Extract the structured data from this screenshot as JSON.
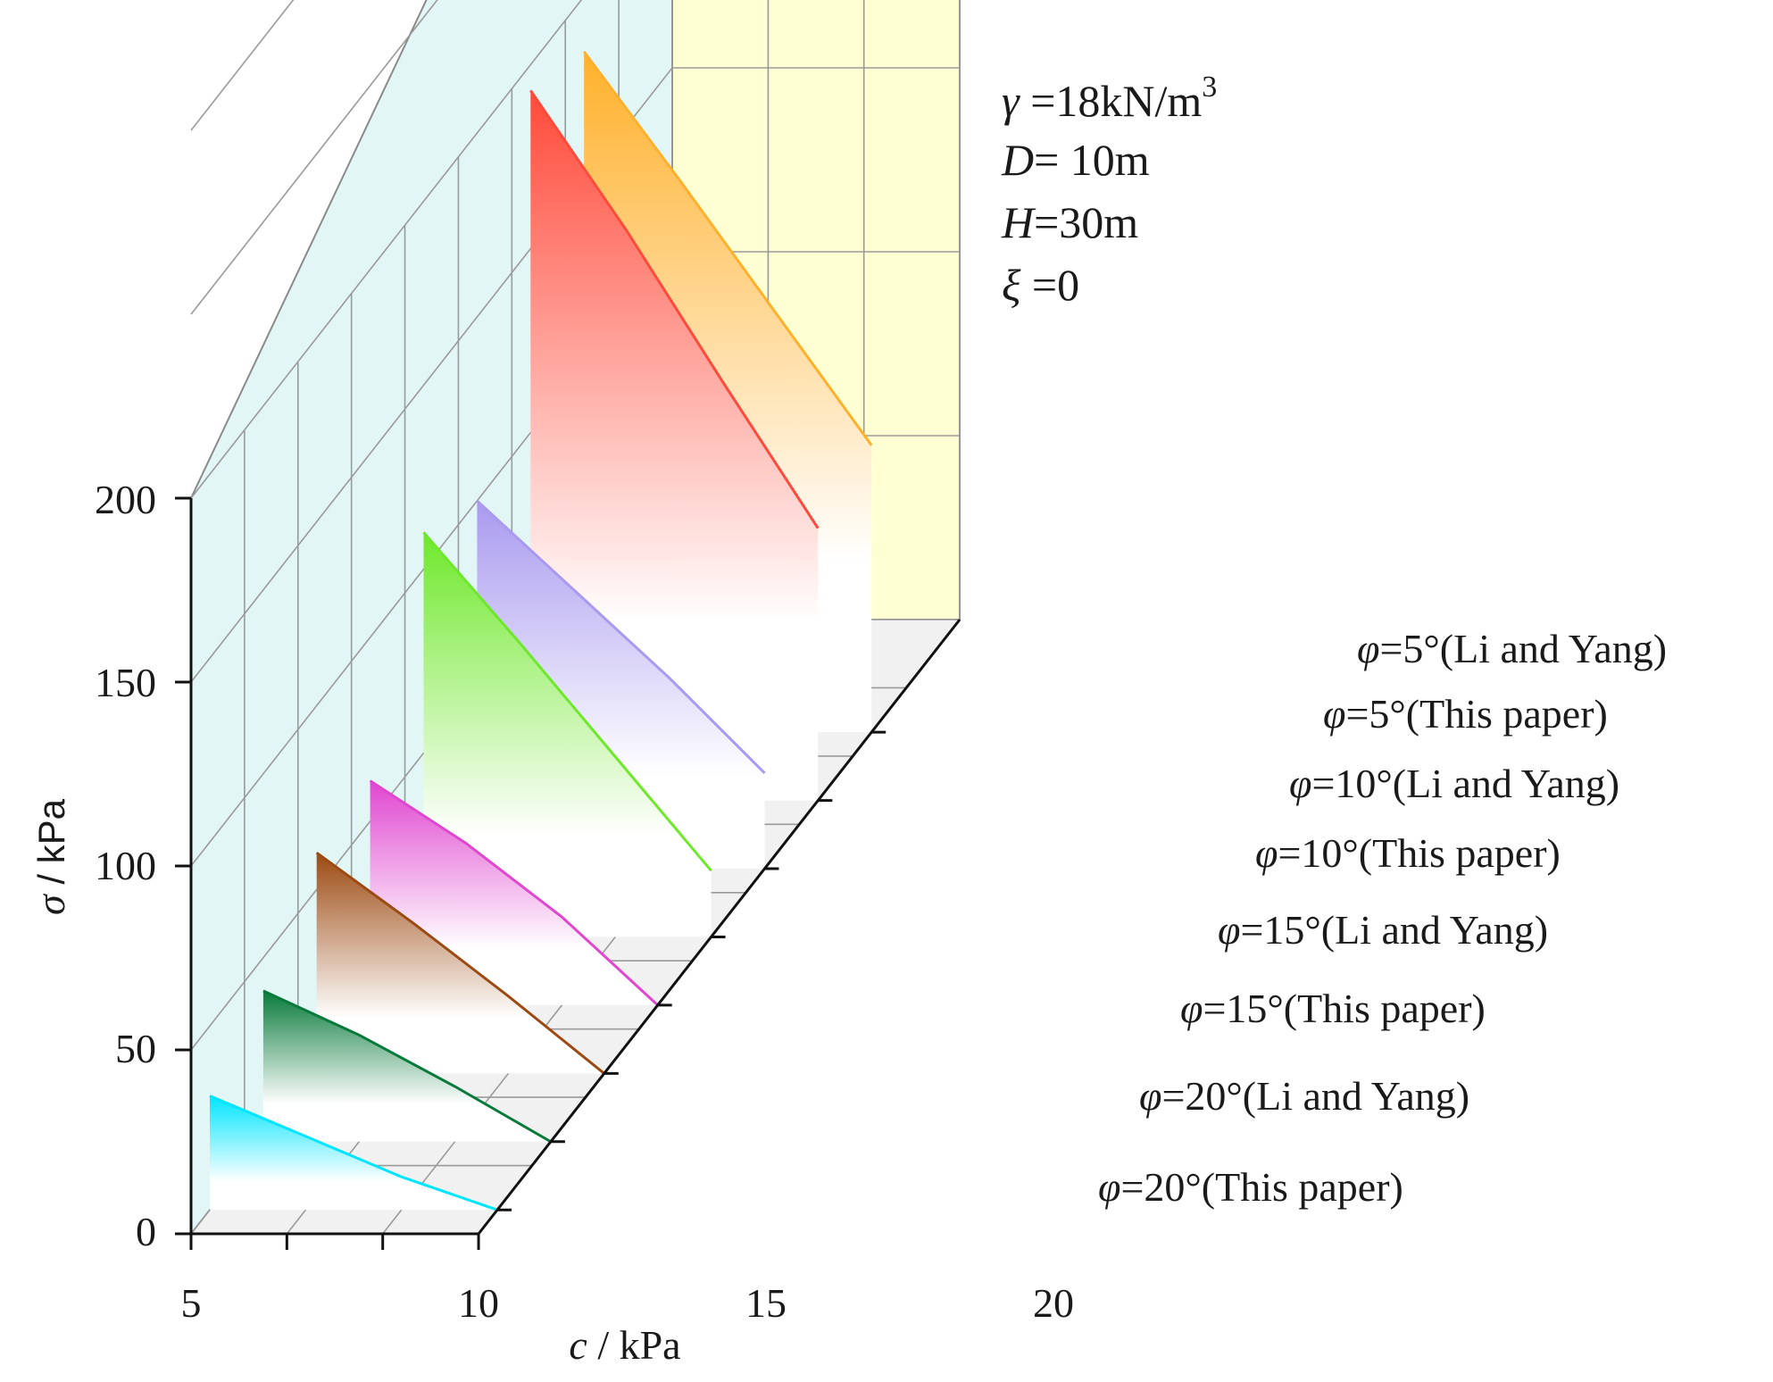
{
  "chart_data": {
    "type": "3d-area-waterfall",
    "xlabel": {
      "var": "c",
      "unit": " / kPa"
    },
    "ylabel": {
      "var": "σ",
      "unit": " / kPa"
    },
    "x_ticks": [
      "5",
      "10",
      "15",
      "20"
    ],
    "y_ticks": [
      "0",
      "50",
      "100",
      "150",
      "200"
    ],
    "xlim": [
      5,
      20
    ],
    "ylim": [
      0,
      200
    ],
    "annotations": [
      {
        "var": "γ",
        "text": " =18kN/m",
        "sup": "3"
      },
      {
        "var": "D",
        "text": "= 10m",
        "sup": ""
      },
      {
        "var": "H",
        "text": "=30m",
        "sup": ""
      },
      {
        "var": "ξ",
        "text": " =0",
        "sup": ""
      }
    ],
    "series": [
      {
        "name": "φ=20°(This paper)",
        "phi": "φ",
        "rest": "=20°(This paper)",
        "color": "#00e5ff",
        "x": [
          5,
          10,
          15,
          20
        ],
        "values": [
          31,
          20,
          9,
          0
        ]
      },
      {
        "name": "φ=20°(Li and Yang)",
        "phi": "φ",
        "rest": "=20°(Li and Yang)",
        "color": "#087a3a",
        "x": [
          5,
          10,
          15,
          20
        ],
        "values": [
          41,
          29,
          15,
          0
        ]
      },
      {
        "name": "φ=15°(This paper)",
        "phi": "φ",
        "rest": "=15°(This paper)",
        "color": "#9c4a12",
        "x": [
          5,
          10,
          15,
          20
        ],
        "values": [
          60,
          41,
          21,
          0
        ]
      },
      {
        "name": "φ=15°(Li and Yang)",
        "phi": "φ",
        "rest": "=15°(Li and Yang)",
        "color": "#e046d0",
        "x": [
          5,
          10,
          15,
          20
        ],
        "values": [
          61,
          44,
          24,
          0
        ]
      },
      {
        "name": "φ=10°(This paper)",
        "phi": "φ",
        "rest": "=10°(This paper)",
        "color": "#6ee82a",
        "x": [
          5,
          10,
          15,
          20
        ],
        "values": [
          110,
          80,
          49,
          18
        ]
      },
      {
        "name": "φ=10°(Li and Yang)",
        "phi": "φ",
        "rest": "=10°(Li and Yang)",
        "color": "#a99aef",
        "x": [
          5,
          10,
          15,
          20
        ],
        "values": [
          100,
          76,
          52,
          26
        ]
      },
      {
        "name": "φ=5°(This paper)",
        "phi": "φ",
        "rest": "=5°(This paper)",
        "color": "#ff4a3a",
        "x": [
          5,
          10,
          15,
          20
        ],
        "values": [
          193,
          155,
          114,
          74
        ]
      },
      {
        "name": "φ=5°(Li and Yang)",
        "phi": "φ",
        "rest": "=5°(Li and Yang)",
        "color": "#ffb02a",
        "x": [
          5,
          10,
          15,
          20
        ],
        "values": [
          185,
          150,
          114,
          78
        ]
      }
    ]
  }
}
